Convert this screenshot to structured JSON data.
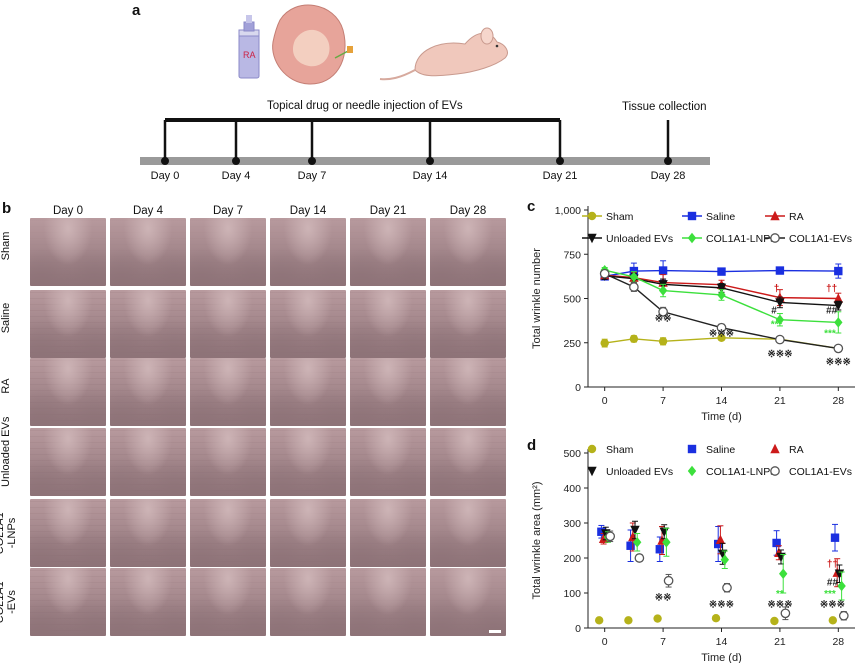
{
  "panel_a": {
    "letter": "a",
    "cream_label": "RA",
    "note_left": "Topical drug  or needle injection of EVs",
    "note_right": "Tissue collection",
    "timeline": [
      {
        "label": "Day 0",
        "day": 0
      },
      {
        "label": "Day 4",
        "day": 4
      },
      {
        "label": "Day 7",
        "day": 7
      },
      {
        "label": "Day 14",
        "day": 14
      },
      {
        "label": "Day 21",
        "day": 21
      },
      {
        "label": "Day 28",
        "day": 28
      }
    ]
  },
  "panel_b": {
    "letter": "b",
    "columns": [
      "Day 0",
      "Day 4",
      "Day 7",
      "Day 14",
      "Day 21",
      "Day 28"
    ],
    "rows": [
      {
        "label": "Sham",
        "italic": ""
      },
      {
        "label": "Saline",
        "italic": ""
      },
      {
        "label": "RA",
        "italic": ""
      },
      {
        "label": "Unloaded EVs",
        "italic": ""
      },
      {
        "label": "-LNPs",
        "italic": "COL1A1"
      },
      {
        "label": "-EVs",
        "italic": "COL1A1"
      }
    ],
    "colors": {
      "skin": "#b89a9e",
      "skin_dark": "#8e7378",
      "skin_light": "#cdb4b6"
    }
  },
  "chart_data": [
    {
      "panel": "c",
      "type": "line",
      "ylabel": "Total wrinkle number",
      "xlabel": "Time (d)",
      "x_ticks": [
        0,
        7,
        14,
        21,
        28
      ],
      "y_ticks": [
        "0",
        "250",
        "500",
        "750",
        "1,000"
      ],
      "ylim": [
        0,
        1000
      ],
      "x": [
        0,
        3.5,
        7,
        14,
        21,
        28
      ],
      "legend_placement": "top",
      "series": [
        {
          "name": "Sham",
          "color": "#b5b21a",
          "marker": "circle",
          "values": [
            248,
            272,
            258,
            278,
            270,
            218
          ],
          "err": [
            22,
            18,
            20,
            15,
            15,
            12
          ]
        },
        {
          "name": "Saline",
          "color": "#1a2fe0",
          "marker": "square",
          "values": [
            625,
            655,
            658,
            652,
            658,
            655
          ],
          "err": [
            15,
            45,
            55,
            15,
            20,
            40
          ]
        },
        {
          "name": "RA",
          "color": "#cc1a1a",
          "marker": "triangle-up",
          "values": [
            632,
            618,
            590,
            578,
            505,
            500
          ],
          "err": [
            20,
            30,
            45,
            25,
            45,
            30
          ]
        },
        {
          "name": "Unloaded EVs",
          "color": "#111111",
          "marker": "triangle-down",
          "values": [
            628,
            612,
            580,
            560,
            478,
            460
          ],
          "err": [
            20,
            30,
            30,
            25,
            30,
            25
          ]
        },
        {
          "name": "COL1A1-LNPs",
          "color": "#3ce03c",
          "marker": "diamond",
          "values": [
            660,
            622,
            545,
            520,
            380,
            365
          ],
          "err": [
            15,
            30,
            35,
            30,
            35,
            60
          ]
        },
        {
          "name": "COL1A1-EVs",
          "color": "#555555",
          "marker": "circle-open",
          "values": [
            640,
            565,
            425,
            335,
            268,
            218
          ],
          "err": [
            15,
            25,
            25,
            20,
            15,
            15
          ]
        }
      ],
      "annotations": [
        {
          "text": "※※",
          "x": 7,
          "y": 370,
          "color": "#222222"
        },
        {
          "text": "※※※",
          "x": 14,
          "y": 285,
          "color": "#222222"
        },
        {
          "text": "※※※",
          "x": 21,
          "y": 170,
          "color": "#222222"
        },
        {
          "text": "※※※",
          "x": 28,
          "y": 125,
          "color": "#222222"
        },
        {
          "text": "#",
          "x": 20.3,
          "y": 415,
          "color": "#222222"
        },
        {
          "text": "##",
          "x": 27.2,
          "y": 415,
          "color": "#222222"
        },
        {
          "text": "†",
          "x": 20.6,
          "y": 540,
          "color": "#cc1a1a"
        },
        {
          "text": "††",
          "x": 27.2,
          "y": 540,
          "color": "#cc1a1a"
        },
        {
          "text": "***",
          "x": 20.6,
          "y": 335,
          "color": "#3ce03c"
        },
        {
          "text": "***",
          "x": 27,
          "y": 285,
          "color": "#3ce03c"
        }
      ]
    },
    {
      "panel": "d",
      "type": "scatter",
      "ylabel": "Total wrinkle area (mm²)",
      "xlabel": "Time (d)",
      "x_ticks": [
        0,
        7,
        14,
        21,
        28
      ],
      "y_ticks": [
        "0",
        "100",
        "200",
        "300",
        "400",
        "500"
      ],
      "ylim": [
        0,
        500
      ],
      "x": [
        0,
        3.5,
        7,
        14,
        21,
        28
      ],
      "legend_placement": "top",
      "series": [
        {
          "name": "Sham",
          "color": "#b5b21a",
          "marker": "circle",
          "values": [
            22,
            22,
            27,
            28,
            20,
            22
          ],
          "err": [
            3,
            3,
            6,
            4,
            3,
            4
          ]
        },
        {
          "name": "Saline",
          "color": "#1a2fe0",
          "marker": "square",
          "values": [
            275,
            235,
            225,
            240,
            243,
            258
          ],
          "err": [
            18,
            45,
            35,
            50,
            35,
            38
          ]
        },
        {
          "name": "RA",
          "color": "#cc1a1a",
          "marker": "triangle-up",
          "values": [
            255,
            260,
            250,
            252,
            215,
            158
          ],
          "err": [
            15,
            40,
            40,
            40,
            20,
            40
          ]
        },
        {
          "name": "Unloaded EVs",
          "color": "#111111",
          "marker": "triangle-down",
          "values": [
            270,
            280,
            275,
            212,
            203,
            155
          ],
          "err": [
            18,
            25,
            20,
            30,
            20,
            25
          ]
        },
        {
          "name": "COL1A1-LNPs",
          "color": "#3ce03c",
          "marker": "diamond",
          "values": [
            260,
            245,
            245,
            195,
            155,
            120
          ],
          "err": [
            15,
            25,
            40,
            25,
            55,
            40
          ]
        },
        {
          "name": "COL1A1-EVs",
          "color": "#555555",
          "marker": "circle-open",
          "values": [
            262,
            200,
            135,
            115,
            42,
            35
          ],
          "err": [
            15,
            10,
            18,
            12,
            18,
            12
          ]
        }
      ],
      "annotations": [
        {
          "text": "※※",
          "x": 7,
          "y": 78,
          "color": "#222222"
        },
        {
          "text": "※※※",
          "x": 14,
          "y": 58,
          "color": "#222222"
        },
        {
          "text": "※※※",
          "x": 21,
          "y": 58,
          "color": "#222222"
        },
        {
          "text": "※※※",
          "x": 27.3,
          "y": 58,
          "color": "#222222"
        },
        {
          "text": "##",
          "x": 27.3,
          "y": 122,
          "color": "#222222"
        },
        {
          "text": "††",
          "x": 27.3,
          "y": 175,
          "color": "#cc1a1a"
        },
        {
          "text": "**",
          "x": 21,
          "y": 88,
          "color": "#3ce03c"
        },
        {
          "text": "***",
          "x": 27,
          "y": 88,
          "color": "#3ce03c"
        }
      ]
    }
  ],
  "panel_letters": {
    "c": "c",
    "d": "d"
  }
}
